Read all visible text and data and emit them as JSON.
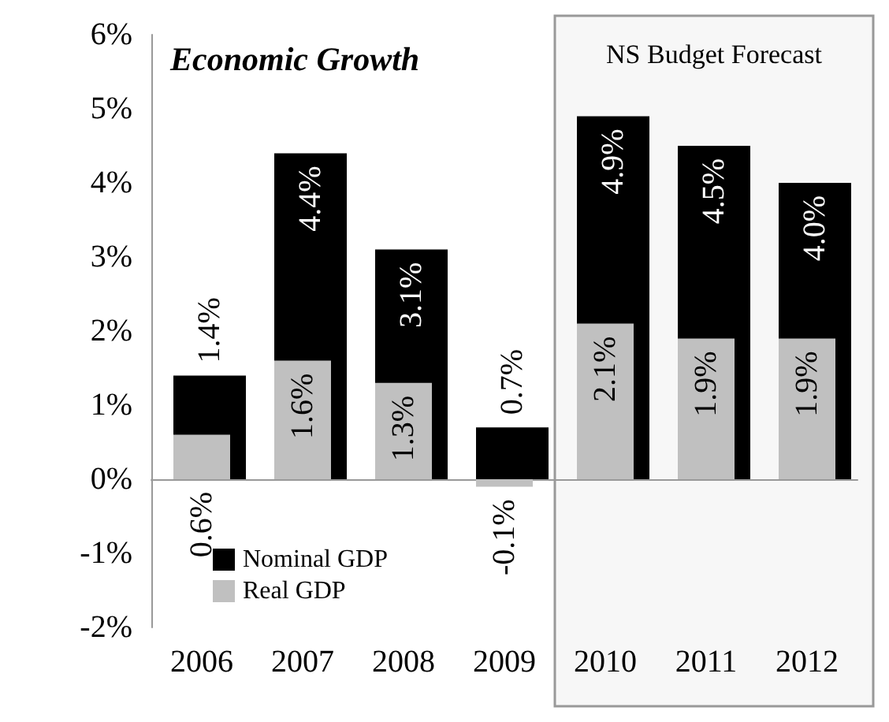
{
  "chart_data": {
    "type": "bar",
    "title": "Economic Growth",
    "categories": [
      "2006",
      "2007",
      "2008",
      "2009",
      "2010",
      "2011",
      "2012"
    ],
    "series": [
      {
        "name": "Nominal GDP",
        "color": "#000000",
        "values": [
          1.4,
          4.4,
          3.1,
          0.7,
          4.9,
          4.5,
          4.0
        ],
        "value_labels": [
          "1.4%",
          "4.4%",
          "3.1%",
          "0.7%",
          "4.9%",
          "4.5%",
          "4.0%"
        ]
      },
      {
        "name": "Real GDP",
        "color": "#c0c0c0",
        "values": [
          0.6,
          1.6,
          1.3,
          -0.1,
          2.1,
          1.9,
          1.9
        ],
        "value_labels": [
          "0.6%",
          "1.6%",
          "1.3%",
          "-0.1%",
          "2.1%",
          "1.9%",
          "1.9%"
        ]
      }
    ],
    "ylim": [
      -2,
      6
    ],
    "yticks": [
      {
        "value": -2,
        "label": "-2%"
      },
      {
        "value": -1,
        "label": "-1%"
      },
      {
        "value": 0,
        "label": "0%"
      },
      {
        "value": 1,
        "label": "1%"
      },
      {
        "value": 2,
        "label": "2%"
      },
      {
        "value": 3,
        "label": "3%"
      },
      {
        "value": 4,
        "label": "4%"
      },
      {
        "value": 5,
        "label": "5%"
      },
      {
        "value": 6,
        "label": "6%"
      }
    ],
    "bands": [
      {
        "axis": "x",
        "from": "2010",
        "to": "2012",
        "label": "NS Budget Forecast",
        "color": "#f7f7f7"
      }
    ],
    "legend": "bottom left"
  }
}
